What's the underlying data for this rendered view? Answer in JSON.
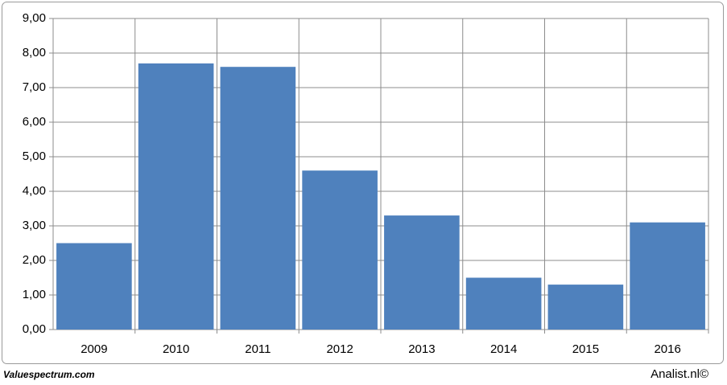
{
  "chart_data": {
    "type": "bar",
    "categories": [
      "2009",
      "2010",
      "2011",
      "2012",
      "2013",
      "2014",
      "2015",
      "2016"
    ],
    "values": [
      2.5,
      7.7,
      7.6,
      4.6,
      3.3,
      1.5,
      1.3,
      3.1
    ],
    "color": "#4f81bd",
    "ylim": [
      0,
      9
    ],
    "yticks": [
      {
        "value": 0,
        "label": "0,00"
      },
      {
        "value": 1,
        "label": "1,00"
      },
      {
        "value": 2,
        "label": "2,00"
      },
      {
        "value": 3,
        "label": "3,00"
      },
      {
        "value": 4,
        "label": "4,00"
      },
      {
        "value": 5,
        "label": "5,00"
      },
      {
        "value": 6,
        "label": "6,00"
      },
      {
        "value": 7,
        "label": "7,00"
      },
      {
        "value": 8,
        "label": "8,00"
      },
      {
        "value": 9,
        "label": "9,00"
      }
    ],
    "grid": true,
    "footer_left": "Valuespectrum.com",
    "footer_right": "Analist.nl©"
  }
}
